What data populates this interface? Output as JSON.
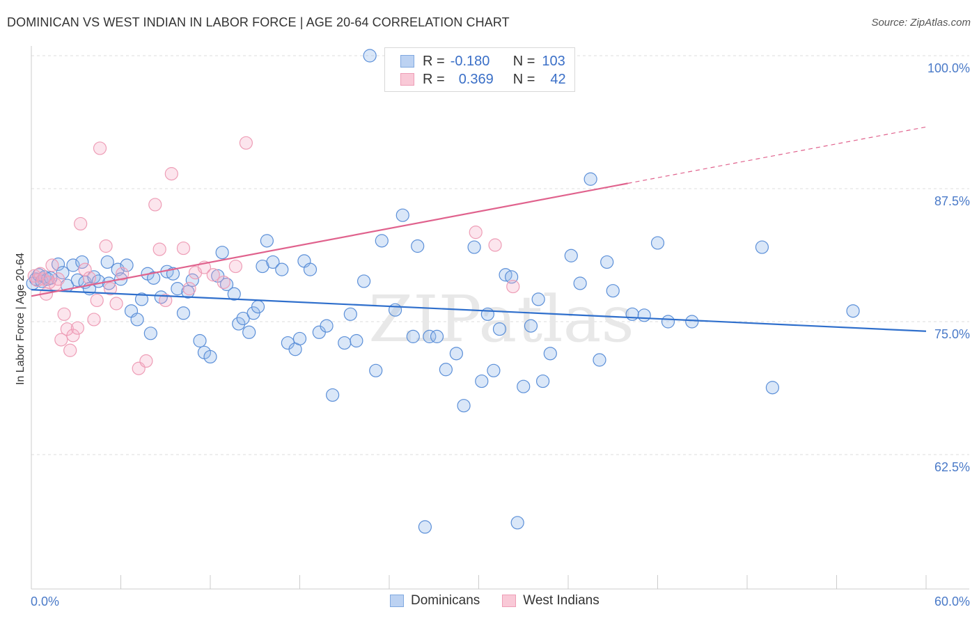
{
  "title": "DOMINICAN VS WEST INDIAN IN LABOR FORCE | AGE 20-64 CORRELATION CHART",
  "source": "Source: ZipAtlas.com",
  "watermark": "ZIPatlas",
  "legend": {
    "rows": [
      {
        "r_label": "R =",
        "r_value": "-0.180",
        "n_label": "N =",
        "n_value": "103",
        "color": "#7fa8e0",
        "fill": "#bcd2f2"
      },
      {
        "r_label": "R =",
        "r_value": "0.369",
        "n_label": "N =",
        "n_value": "42",
        "color": "#ee9db6",
        "fill": "#f9c9d7"
      }
    ]
  },
  "bottom_legend": [
    "Dominicans",
    "West Indians"
  ],
  "chart_data": {
    "type": "scatter",
    "title": "DOMINICAN VS WEST INDIAN IN LABOR FORCE | AGE 20-64 CORRELATION CHART",
    "xlabel": "",
    "ylabel": "In Labor Force | Age 20-64",
    "xlim": [
      0,
      60
    ],
    "ylim": [
      50,
      101
    ],
    "x_tick_labels": [
      "0.0%",
      "60.0%"
    ],
    "y_ticks": [
      62.5,
      75.0,
      87.5,
      100.0
    ],
    "y_tick_labels": [
      "62.5%",
      "75.0%",
      "87.5%",
      "100.0%"
    ],
    "grid": "horizontal dashed",
    "legend_position": "top-center",
    "series": [
      {
        "name": "Dominicans",
        "color": "#5b8fd8",
        "line_color": "#2f6fcc",
        "trend": {
          "x": [
            0,
            60
          ],
          "y": [
            78.0,
            74.1
          ]
        },
        "points": [
          [
            0.1,
            78.6
          ],
          [
            0.3,
            79.0
          ],
          [
            0.5,
            79.4
          ],
          [
            0.7,
            78.8
          ],
          [
            0.9,
            79.2
          ],
          [
            1.1,
            79.0
          ],
          [
            1.3,
            79.1
          ],
          [
            1.8,
            80.4
          ],
          [
            2.1,
            79.6
          ],
          [
            2.4,
            78.4
          ],
          [
            2.8,
            80.3
          ],
          [
            3.1,
            78.9
          ],
          [
            3.4,
            80.6
          ],
          [
            3.6,
            78.7
          ],
          [
            3.9,
            78.1
          ],
          [
            4.2,
            79.2
          ],
          [
            4.5,
            78.8
          ],
          [
            5.1,
            80.6
          ],
          [
            5.2,
            78.6
          ],
          [
            5.8,
            79.9
          ],
          [
            6.0,
            79.0
          ],
          [
            6.4,
            80.3
          ],
          [
            6.7,
            76.0
          ],
          [
            7.1,
            75.2
          ],
          [
            7.4,
            77.1
          ],
          [
            7.8,
            79.5
          ],
          [
            8.0,
            73.9
          ],
          [
            8.2,
            79.1
          ],
          [
            8.7,
            77.3
          ],
          [
            9.1,
            79.7
          ],
          [
            9.5,
            79.5
          ],
          [
            9.8,
            78.1
          ],
          [
            10.2,
            75.8
          ],
          [
            10.5,
            77.8
          ],
          [
            10.8,
            78.9
          ],
          [
            11.3,
            73.2
          ],
          [
            11.6,
            72.1
          ],
          [
            12.0,
            71.7
          ],
          [
            12.5,
            79.3
          ],
          [
            12.8,
            81.5
          ],
          [
            13.1,
            78.5
          ],
          [
            13.6,
            77.6
          ],
          [
            13.9,
            74.8
          ],
          [
            14.2,
            75.3
          ],
          [
            14.6,
            74.0
          ],
          [
            14.9,
            75.8
          ],
          [
            15.2,
            76.4
          ],
          [
            15.5,
            80.2
          ],
          [
            15.8,
            82.6
          ],
          [
            16.2,
            80.6
          ],
          [
            16.8,
            79.9
          ],
          [
            17.2,
            73.0
          ],
          [
            17.7,
            72.4
          ],
          [
            18.0,
            73.4
          ],
          [
            18.3,
            80.7
          ],
          [
            18.7,
            79.9
          ],
          [
            19.3,
            74.0
          ],
          [
            19.8,
            74.6
          ],
          [
            20.2,
            68.1
          ],
          [
            21.0,
            73.0
          ],
          [
            21.4,
            75.7
          ],
          [
            21.8,
            73.2
          ],
          [
            22.3,
            78.8
          ],
          [
            22.7,
            100.0
          ],
          [
            23.1,
            70.4
          ],
          [
            23.5,
            82.6
          ],
          [
            24.4,
            76.1
          ],
          [
            24.9,
            85.0
          ],
          [
            25.6,
            73.6
          ],
          [
            25.9,
            82.1
          ],
          [
            26.4,
            55.7
          ],
          [
            26.7,
            73.6
          ],
          [
            27.2,
            73.6
          ],
          [
            27.8,
            70.5
          ],
          [
            28.5,
            72.0
          ],
          [
            29.0,
            67.1
          ],
          [
            29.7,
            82.0
          ],
          [
            30.2,
            69.4
          ],
          [
            30.6,
            75.7
          ],
          [
            31.0,
            70.4
          ],
          [
            31.4,
            74.3
          ],
          [
            31.8,
            79.4
          ],
          [
            32.2,
            79.2
          ],
          [
            32.6,
            56.1
          ],
          [
            33.0,
            68.9
          ],
          [
            33.5,
            74.6
          ],
          [
            34.0,
            77.1
          ],
          [
            34.3,
            69.4
          ],
          [
            34.8,
            72.0
          ],
          [
            36.2,
            81.2
          ],
          [
            36.8,
            78.6
          ],
          [
            37.5,
            88.4
          ],
          [
            38.1,
            71.4
          ],
          [
            38.6,
            80.6
          ],
          [
            39.0,
            77.9
          ],
          [
            40.3,
            75.7
          ],
          [
            41.1,
            75.6
          ],
          [
            42.0,
            82.4
          ],
          [
            42.7,
            75.0
          ],
          [
            44.3,
            75.0
          ],
          [
            49.0,
            82.0
          ],
          [
            49.7,
            68.8
          ],
          [
            55.1,
            76.0
          ]
        ]
      },
      {
        "name": "West Indians",
        "color": "#ee9db6",
        "line_color": "#e0628d",
        "trend": {
          "x": [
            0,
            40
          ],
          "y": [
            77.4,
            88.0
          ]
        },
        "trend_dashed": {
          "x": [
            40,
            60
          ],
          "y": [
            88.0,
            93.3
          ]
        },
        "points": [
          [
            0.2,
            79.3
          ],
          [
            0.4,
            78.9
          ],
          [
            0.6,
            79.5
          ],
          [
            0.8,
            79.0
          ],
          [
            1.0,
            77.6
          ],
          [
            1.2,
            78.7
          ],
          [
            1.4,
            80.3
          ],
          [
            1.6,
            78.5
          ],
          [
            1.8,
            79.0
          ],
          [
            2.0,
            73.3
          ],
          [
            2.2,
            75.7
          ],
          [
            2.4,
            74.3
          ],
          [
            2.6,
            72.3
          ],
          [
            2.8,
            73.7
          ],
          [
            3.1,
            74.4
          ],
          [
            3.3,
            84.2
          ],
          [
            3.6,
            79.9
          ],
          [
            3.9,
            79.1
          ],
          [
            4.2,
            75.2
          ],
          [
            4.4,
            77.0
          ],
          [
            4.6,
            91.3
          ],
          [
            5.0,
            82.1
          ],
          [
            5.3,
            78.1
          ],
          [
            5.7,
            76.7
          ],
          [
            6.1,
            79.5
          ],
          [
            7.2,
            70.6
          ],
          [
            7.7,
            71.3
          ],
          [
            8.3,
            86.0
          ],
          [
            8.6,
            81.8
          ],
          [
            9.0,
            77.0
          ],
          [
            9.4,
            88.9
          ],
          [
            10.2,
            81.9
          ],
          [
            10.6,
            78.1
          ],
          [
            11.0,
            79.6
          ],
          [
            11.6,
            80.1
          ],
          [
            12.2,
            79.4
          ],
          [
            12.9,
            78.7
          ],
          [
            13.7,
            80.2
          ],
          [
            14.4,
            91.8
          ],
          [
            29.8,
            83.4
          ],
          [
            31.1,
            82.2
          ],
          [
            32.3,
            78.3
          ]
        ]
      }
    ]
  }
}
